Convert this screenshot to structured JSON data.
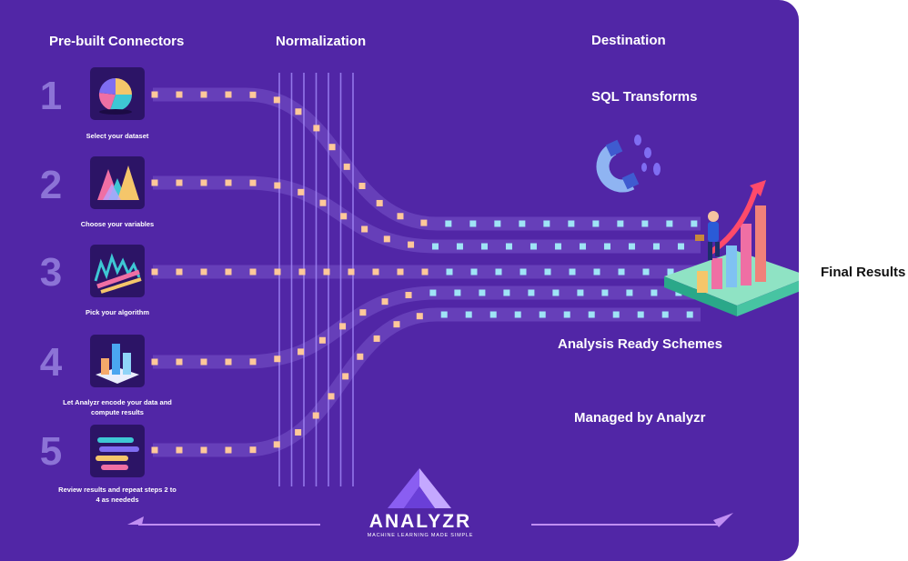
{
  "headers": {
    "connectors": "Pre-built Connectors",
    "normalization": "Normalization",
    "destination": "Destination"
  },
  "steps": [
    {
      "number": "1",
      "caption": "Select your dataset",
      "icon": "pie-chart-icon"
    },
    {
      "number": "2",
      "caption": "Choose your variables",
      "icon": "triangle-chart-icon"
    },
    {
      "number": "3",
      "caption": "Pick your algorithm",
      "icon": "wave-chart-icon"
    },
    {
      "number": "4",
      "caption": "Let Analyzr encode your data and compute results",
      "icon": "bar-blocks-icon"
    },
    {
      "number": "5",
      "caption": "Review results and repeat steps 2 to 4 as neededs",
      "icon": "stacked-bars-icon"
    }
  ],
  "destination_items": {
    "sql_transforms": "SQL Transforms",
    "analysis_ready": "Analysis Ready Schemes",
    "managed_by": "Managed by Analyzr"
  },
  "final_label": "Final Results",
  "brand": {
    "name": "ANALYZR",
    "tagline": "MACHINE LEARNING MADE SIMPLE"
  },
  "icons": {
    "magnet": "magnet-icon",
    "growth": "growth-arrow-icon",
    "loop_left": "arrow-left-icon",
    "loop_right": "arrow-right-icon",
    "logo": "analyzr-logo-icon"
  },
  "colors": {
    "background": "#5126a6",
    "tile": "#2c1466",
    "dot_orange": "#ffc89a",
    "dot_blue": "#9fe4f6",
    "number": "#8c73d6",
    "arrow": "#c08ef2"
  }
}
